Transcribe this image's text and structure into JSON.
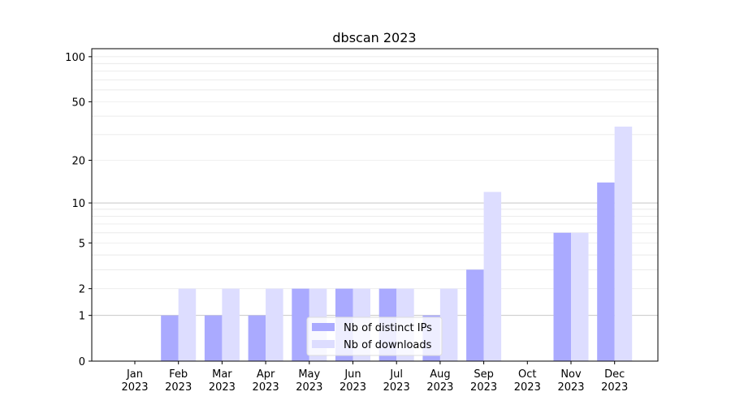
{
  "chart_data": {
    "type": "bar",
    "title": "dbscan 2023",
    "xlabel": "",
    "ylabel": "",
    "yscale": "log(1+y)",
    "ylim": [
      0,
      113
    ],
    "grid": true,
    "legend_position": "bottom-center",
    "categories": [
      "Jan\n2023",
      "Feb\n2023",
      "Mar\n2023",
      "Apr\n2023",
      "May\n2023",
      "Jun\n2023",
      "Jul\n2023",
      "Aug\n2023",
      "Sep\n2023",
      "Oct\n2023",
      "Nov\n2023",
      "Dec\n2023"
    ],
    "yticks": [
      0,
      1,
      2,
      5,
      10,
      20,
      50,
      100
    ],
    "series": [
      {
        "name": "Nb of distinct IPs",
        "color": "#aaaaff",
        "values": [
          0,
          1,
          1,
          1,
          2,
          2,
          2,
          1,
          3,
          0,
          6,
          14
        ]
      },
      {
        "name": "Nb of downloads",
        "color": "#ddddff",
        "values": [
          0,
          2,
          2,
          2,
          2,
          2,
          2,
          2,
          12,
          0,
          6,
          34
        ]
      }
    ]
  }
}
